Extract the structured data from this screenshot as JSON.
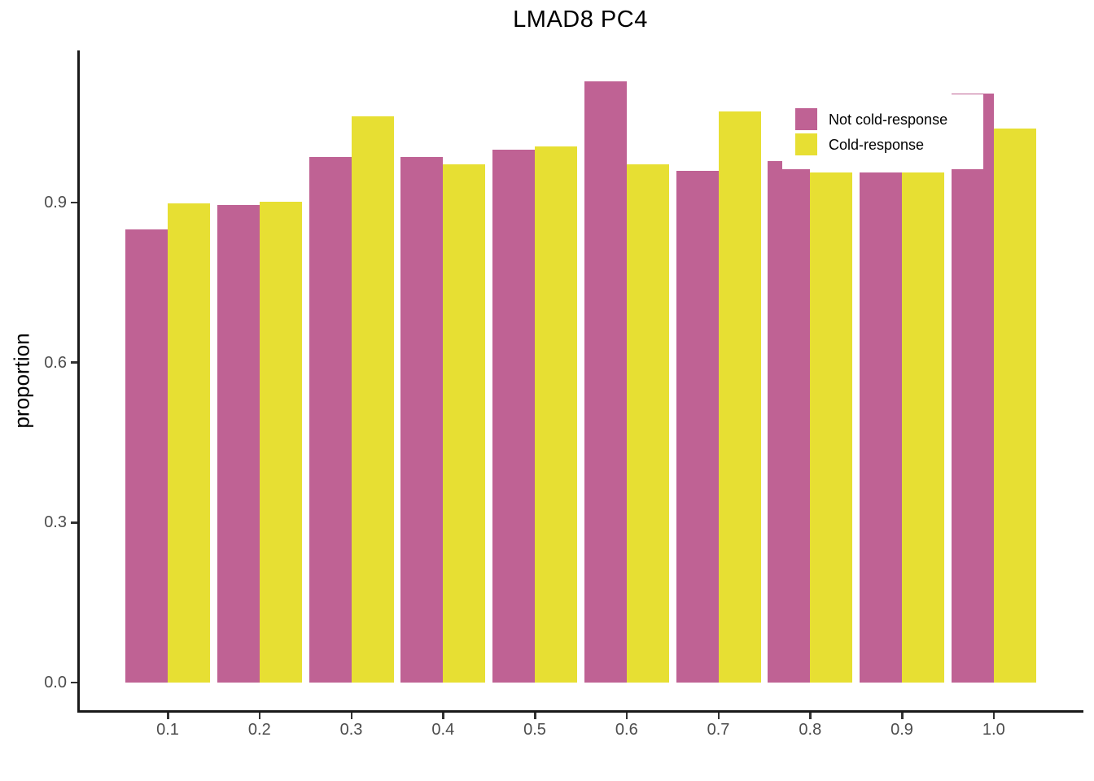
{
  "title": "LMAD8 PC4",
  "y_axis_title": "proportion",
  "chart_data": {
    "type": "bar",
    "title": "LMAD8 PC4",
    "xlabel": "",
    "ylabel": "proportion",
    "categories": [
      "0.1",
      "0.2",
      "0.3",
      "0.4",
      "0.5",
      "0.6",
      "0.7",
      "0.8",
      "0.9",
      "1.0"
    ],
    "series": [
      {
        "name": "Not cold-response",
        "color": "#BF6294",
        "values": [
          0.85,
          0.895,
          0.985,
          0.985,
          0.999,
          1.127,
          0.959,
          0.978,
          0.956,
          1.104
        ]
      },
      {
        "name": "Cold-response",
        "color": "#E7DF33",
        "values": [
          0.898,
          0.901,
          1.062,
          0.972,
          1.005,
          0.972,
          1.071,
          0.956,
          0.956,
          1.039
        ]
      }
    ],
    "y_ticks": [
      {
        "label": "0.0",
        "value": 0.0
      },
      {
        "label": "0.3",
        "value": 0.3
      },
      {
        "label": "0.6",
        "value": 0.6
      },
      {
        "label": "0.9",
        "value": 0.9
      }
    ],
    "ylim": [
      -0.05,
      1.19
    ],
    "grid": "off",
    "legend_position": "inside-top-right",
    "legend": [
      {
        "label": "Not cold-response",
        "color": "#BF6294"
      },
      {
        "label": "Cold-response",
        "color": "#E7DF33"
      }
    ]
  },
  "colors": {
    "not_cold_response": "#BF6294",
    "cold_response": "#E7DF33",
    "axis_line": "#1a1a1a",
    "tick_label": "#4d4d4d",
    "background": "#ffffff"
  }
}
